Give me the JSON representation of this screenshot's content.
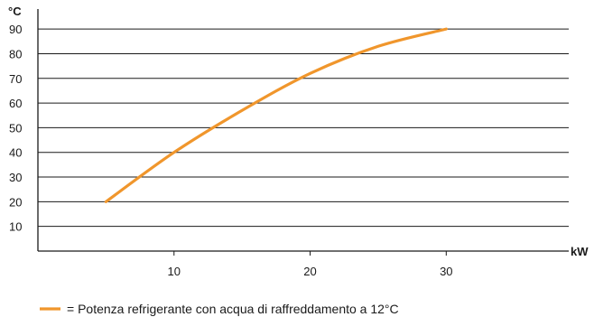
{
  "chart_data": {
    "type": "line",
    "ylabel": "°C",
    "xlabel": "kW",
    "x_ticks": [
      10,
      20,
      30
    ],
    "y_ticks": [
      10,
      20,
      30,
      40,
      50,
      60,
      70,
      80,
      90
    ],
    "xlim": [
      0,
      39
    ],
    "ylim": [
      0,
      97
    ],
    "grid": "horizontal",
    "series": [
      {
        "name": "= Potenza refrigerante con acqua di raffreddamento a 12°C",
        "color": "#f0962c",
        "x": [
          5,
          10,
          15,
          20,
          25,
          30
        ],
        "y": [
          20,
          40,
          57,
          72,
          83,
          90
        ]
      }
    ],
    "legend_position": "bottom-left"
  }
}
